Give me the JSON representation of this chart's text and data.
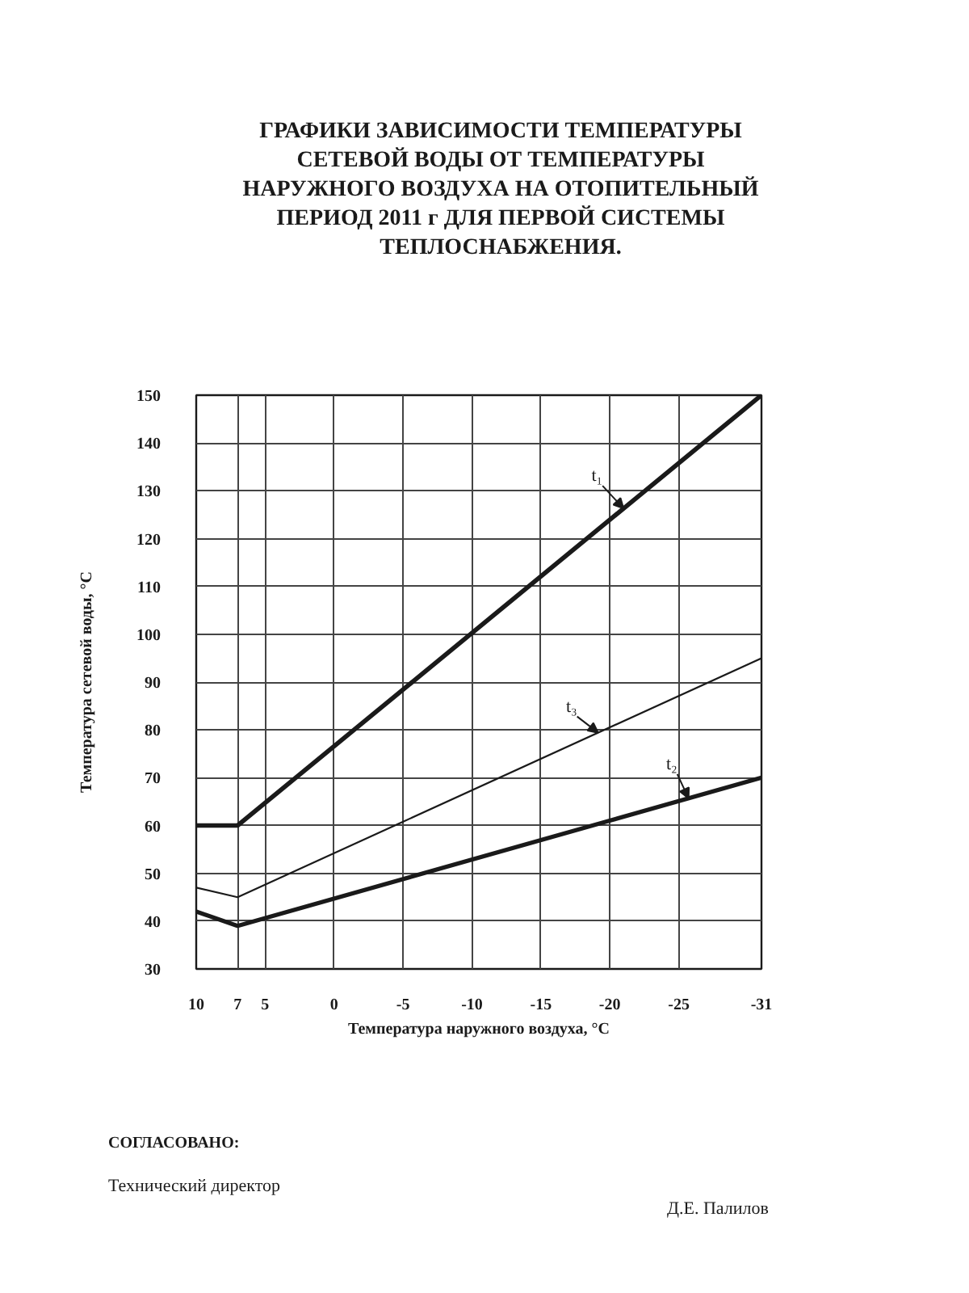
{
  "chart_data": {
    "type": "line",
    "title": "ГРАФИКИ ЗАВИСИМОСТИ ТЕМПЕРАТУРЫ СЕТЕВОЙ ВОДЫ ОТ ТЕМПЕРАТУРЫ НАРУЖНОГО ВОЗДУХА НА ОТОПИТЕЛЬНЫЙ ПЕРИОД 2011 г ДЛЯ ПЕРВОЙ СИСТЕМЫ ТЕПЛОСНАБЖЕНИЯ.",
    "xlabel": "Температура наружного воздуха, °С",
    "ylabel": "Температура сетевой воды, °С",
    "x": [
      10,
      7,
      -31
    ],
    "series": [
      {
        "name": "t₁",
        "color": "#1a1a1a",
        "values": [
          60,
          60,
          150
        ]
      },
      {
        "name": "t₂",
        "color": "#1a1a1a",
        "values": [
          42,
          39,
          70
        ]
      },
      {
        "name": "t₃",
        "color": "#1a1a1a",
        "values": [
          47,
          45,
          95
        ]
      }
    ],
    "xlim": [
      10,
      -31
    ],
    "ylim": [
      30,
      150
    ],
    "xticks": [
      10,
      7,
      5,
      0,
      -5,
      -10,
      -15,
      -20,
      -25,
      -31
    ],
    "yticks": [
      30,
      40,
      50,
      60,
      70,
      80,
      90,
      100,
      110,
      120,
      130,
      140,
      150
    ],
    "grid": true,
    "line_style": "solid",
    "annotations": [
      "СОГЛАСОВАНО:",
      "Технический директор",
      "Д.Е. Палилов"
    ]
  }
}
